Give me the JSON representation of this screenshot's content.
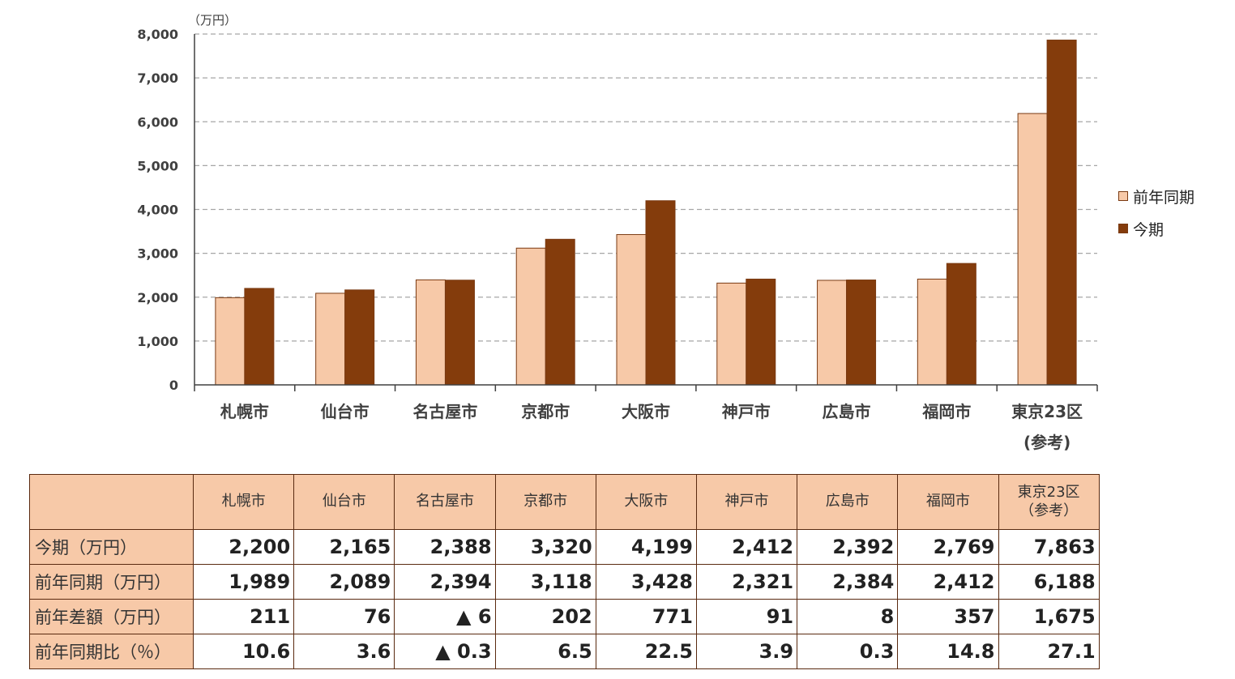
{
  "chart_data": {
    "type": "bar",
    "unit_label": "（万円）",
    "categories": [
      "札幌市",
      "仙台市",
      "名古屋市",
      "京都市",
      "大阪市",
      "神戸市",
      "広島市",
      "福岡市",
      "東京23区\n(参考)"
    ],
    "series": [
      {
        "name": "前年同期",
        "values": [
          1989,
          2089,
          2394,
          3118,
          3428,
          2321,
          2384,
          2412,
          6188
        ],
        "color": "#f7c9a8"
      },
      {
        "name": "今期",
        "values": [
          2200,
          2165,
          2388,
          3320,
          4199,
          2412,
          2392,
          2769,
          7863
        ],
        "color": "#843c0c"
      }
    ],
    "ylim": [
      0,
      8000
    ],
    "yticks": [
      "0",
      "1,000",
      "2,000",
      "3,000",
      "4,000",
      "5,000",
      "6,000",
      "7,000",
      "8,000"
    ],
    "grid": "dashed",
    "legend_position": "right"
  },
  "table": {
    "header": [
      "",
      "札幌市",
      "仙台市",
      "名古屋市",
      "京都市",
      "大阪市",
      "神戸市",
      "広島市",
      "福岡市",
      "東京23区\n（参考）"
    ],
    "rows": [
      {
        "label": "今期（万円）",
        "values": [
          "2,200",
          "2,165",
          "2,388",
          "3,320",
          "4,199",
          "2,412",
          "2,392",
          "2,769",
          "7,863"
        ]
      },
      {
        "label": "前年同期（万円）",
        "values": [
          "1,989",
          "2,089",
          "2,394",
          "3,118",
          "3,428",
          "2,321",
          "2,384",
          "2,412",
          "6,188"
        ]
      },
      {
        "label": "前年差額（万円）",
        "values": [
          "211",
          "76",
          "▲ 6",
          "202",
          "771",
          "91",
          "8",
          "357",
          "1,675"
        ]
      },
      {
        "label": "前年同期比（％）",
        "values": [
          "10.6",
          "3.6",
          "▲ 0.3",
          "6.5",
          "22.5",
          "3.9",
          "0.3",
          "14.8",
          "27.1"
        ]
      }
    ]
  }
}
